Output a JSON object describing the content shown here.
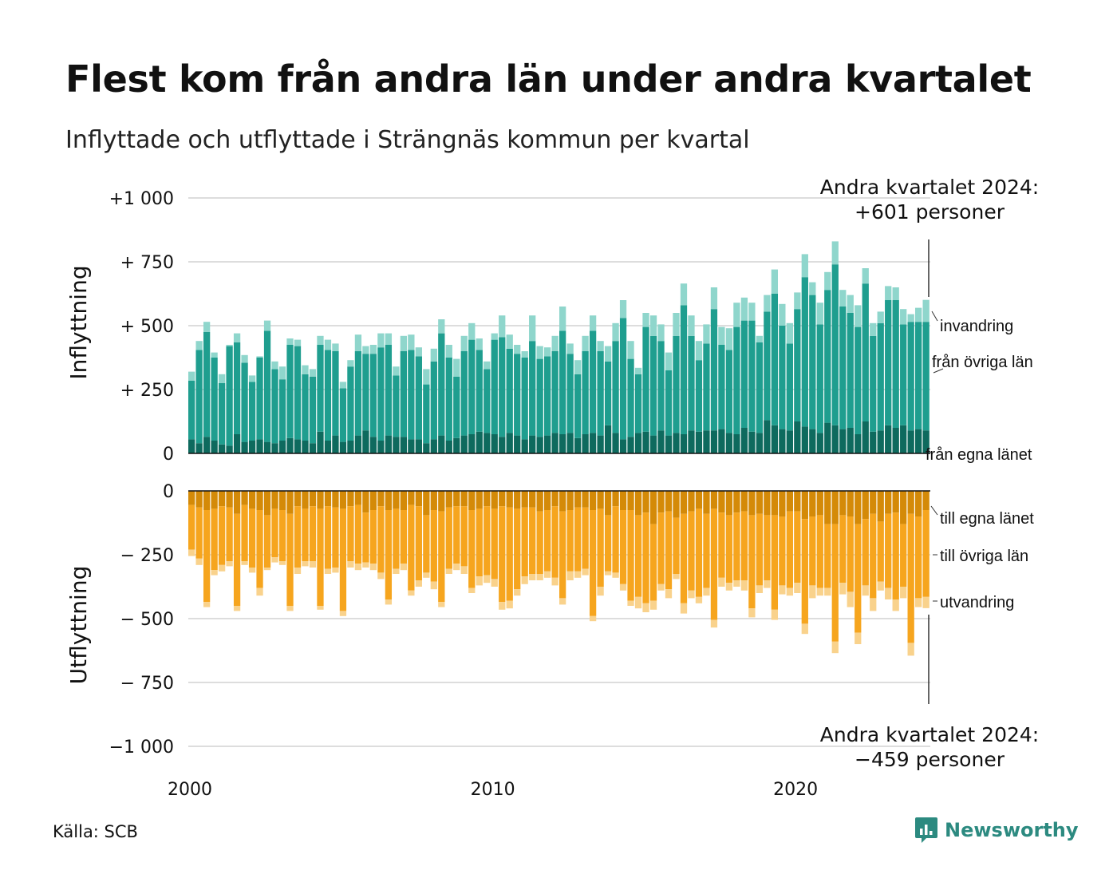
{
  "header": {
    "title": "Flest kom från andra län under andra kvartalet",
    "subtitle": "Inflyttade och utflyttade i Strängnäs kommun per kvartal"
  },
  "footer": {
    "source": "Källa: SCB",
    "logo_text": "Newsworthy",
    "logo_icon": "bar-chart-speech-icon"
  },
  "chart_data": {
    "type": "bar",
    "stacked": true,
    "x_start": "2000 Q1",
    "x_end": "2024 Q2",
    "x_ticks": [
      "2000",
      "2010",
      "2020"
    ],
    "panels": [
      {
        "name": "Inflyttning",
        "ylabel": "Inflyttning",
        "ylim": [
          0,
          1000
        ],
        "y_ticks": [
          "+1 000",
          "+  750",
          "+  500",
          "+  250",
          "0"
        ],
        "series_labels": [
          "från egna länet",
          "från övriga län",
          "invandring"
        ],
        "colors": [
          "#0e6a5e",
          "#1f9e8f",
          "#8fd6cc"
        ],
        "annotation": [
          "Andra kvartalet 2024:",
          "+601 personer"
        ],
        "total": [
          320,
          440,
          515,
          395,
          310,
          425,
          470,
          385,
          305,
          380,
          520,
          360,
          340,
          450,
          445,
          345,
          330,
          460,
          445,
          430,
          280,
          365,
          465,
          420,
          425,
          470,
          470,
          340,
          460,
          465,
          415,
          330,
          410,
          525,
          425,
          370,
          460,
          510,
          450,
          360,
          470,
          540,
          465,
          425,
          400,
          540,
          420,
          415,
          460,
          575,
          430,
          365,
          460,
          540,
          440,
          420,
          510,
          600,
          440,
          335,
          550,
          540,
          505,
          395,
          550,
          665,
          540,
          440,
          505,
          650,
          495,
          490,
          590,
          610,
          590,
          460,
          620,
          720,
          585,
          510,
          630,
          780,
          670,
          590,
          710,
          830,
          640,
          620,
          580,
          725,
          510,
          555,
          655,
          650,
          565,
          545,
          570,
          601
        ],
        "own": [
          55,
          40,
          65,
          50,
          35,
          30,
          75,
          45,
          50,
          55,
          45,
          40,
          50,
          60,
          55,
          50,
          40,
          85,
          50,
          70,
          45,
          50,
          70,
          90,
          65,
          50,
          70,
          65,
          65,
          55,
          55,
          40,
          55,
          70,
          50,
          60,
          70,
          75,
          85,
          80,
          75,
          65,
          80,
          70,
          55,
          70,
          65,
          70,
          80,
          75,
          80,
          60,
          75,
          80,
          70,
          110,
          80,
          55,
          65,
          80,
          85,
          70,
          90,
          70,
          80,
          75,
          90,
          85,
          90,
          90,
          95,
          80,
          75,
          100,
          85,
          80,
          130,
          110,
          95,
          90,
          125,
          105,
          95,
          80,
          120,
          110,
          95,
          100,
          75,
          125,
          85,
          90,
          110,
          100,
          110,
          90,
          95,
          90
        ],
        "other": [
          230,
          365,
          410,
          325,
          240,
          390,
          360,
          310,
          230,
          320,
          435,
          290,
          240,
          365,
          365,
          260,
          260,
          340,
          355,
          330,
          210,
          290,
          330,
          300,
          325,
          365,
          355,
          240,
          335,
          350,
          325,
          230,
          305,
          400,
          325,
          240,
          330,
          370,
          320,
          250,
          370,
          390,
          330,
          320,
          320,
          370,
          305,
          310,
          320,
          405,
          310,
          250,
          325,
          400,
          330,
          250,
          360,
          475,
          305,
          230,
          410,
          390,
          350,
          255,
          380,
          505,
          370,
          280,
          340,
          475,
          330,
          325,
          420,
          420,
          435,
          355,
          425,
          515,
          405,
          340,
          440,
          585,
          525,
          425,
          520,
          630,
          480,
          450,
          420,
          540,
          375,
          420,
          490,
          500,
          395,
          425,
          420,
          425
        ]
      },
      {
        "name": "Utflyttning",
        "ylabel": "Utflyttning",
        "ylim": [
          -1000,
          0
        ],
        "y_ticks": [
          "0",
          "−  250",
          "−  500",
          "−  750",
          "−1 000"
        ],
        "series_labels": [
          "till egna länet",
          "till övriga län",
          "utvandring"
        ],
        "colors": [
          "#d48a08",
          "#f6a51e",
          "#f9d28c"
        ],
        "annotation": [
          "Andra kvartalet 2024:",
          "−459 personer"
        ],
        "total": [
          255,
          290,
          455,
          330,
          315,
          295,
          470,
          290,
          320,
          410,
          310,
          280,
          290,
          470,
          325,
          295,
          300,
          465,
          325,
          320,
          490,
          300,
          310,
          300,
          310,
          345,
          445,
          325,
          310,
          410,
          375,
          340,
          385,
          455,
          325,
          310,
          325,
          400,
          370,
          360,
          375,
          465,
          460,
          410,
          365,
          350,
          350,
          340,
          370,
          445,
          350,
          340,
          330,
          510,
          410,
          330,
          340,
          390,
          450,
          460,
          475,
          465,
          390,
          420,
          345,
          480,
          420,
          440,
          410,
          535,
          375,
          390,
          375,
          390,
          495,
          400,
          380,
          505,
          405,
          410,
          400,
          560,
          420,
          410,
          410,
          635,
          405,
          455,
          600,
          410,
          470,
          390,
          425,
          470,
          420,
          645,
          455,
          459
        ],
        "own": [
          55,
          65,
          75,
          70,
          60,
          65,
          90,
          55,
          70,
          75,
          95,
          70,
          75,
          90,
          60,
          70,
          60,
          70,
          60,
          65,
          70,
          60,
          55,
          85,
          75,
          60,
          75,
          70,
          75,
          55,
          60,
          95,
          75,
          80,
          65,
          60,
          60,
          75,
          70,
          60,
          70,
          60,
          65,
          70,
          65,
          65,
          80,
          75,
          60,
          80,
          75,
          65,
          65,
          75,
          70,
          95,
          60,
          75,
          75,
          95,
          85,
          130,
          85,
          80,
          105,
          90,
          80,
          70,
          90,
          70,
          85,
          95,
          85,
          80,
          95,
          90,
          95,
          95,
          100,
          80,
          80,
          110,
          100,
          95,
          130,
          130,
          95,
          100,
          130,
          110,
          90,
          120,
          90,
          85,
          130,
          90,
          100,
          75
        ],
        "other": [
          175,
          200,
          360,
          240,
          230,
          210,
          360,
          220,
          230,
          305,
          205,
          190,
          200,
          360,
          240,
          205,
          215,
          380,
          245,
          235,
          400,
          215,
          230,
          195,
          210,
          260,
          350,
          235,
          210,
          335,
          290,
          225,
          280,
          355,
          240,
          225,
          235,
          305,
          265,
          270,
          275,
          375,
          365,
          315,
          270,
          260,
          245,
          240,
          280,
          340,
          240,
          250,
          240,
          415,
          305,
          220,
          260,
          290,
          355,
          320,
          355,
          300,
          280,
          305,
          220,
          350,
          310,
          345,
          290,
          435,
          255,
          265,
          265,
          270,
          365,
          280,
          255,
          370,
          270,
          300,
          280,
          410,
          270,
          285,
          250,
          460,
          265,
          295,
          425,
          260,
          330,
          235,
          290,
          340,
          245,
          505,
          320,
          340
        ]
      }
    ]
  }
}
